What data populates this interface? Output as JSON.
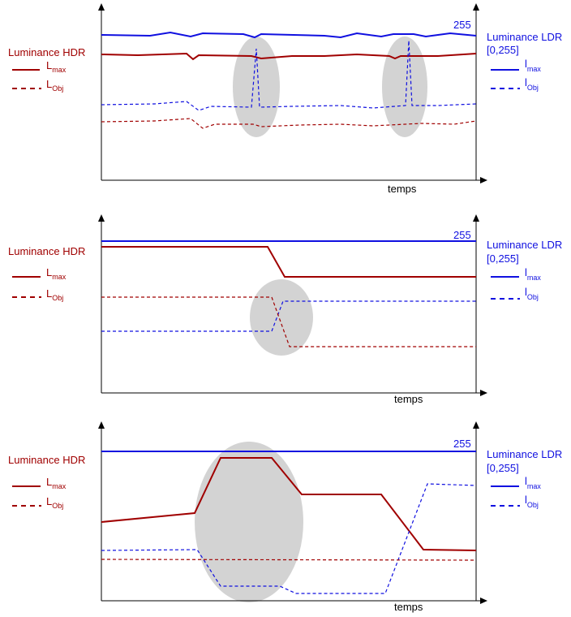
{
  "colors": {
    "hdr": "#a00000",
    "ldr": "#1010e0",
    "axis": "#000000",
    "highlight": "#d3d3d3"
  },
  "labels": {
    "hdr_title": "Luminance HDR",
    "ldr_title_1": "Luminance LDR",
    "ldr_title_2": "[0,255]",
    "value_255": "255",
    "time_axis": "temps",
    "L": "L",
    "l": "l",
    "sub_max": "max",
    "sub_obj": "Obj"
  },
  "panels": [
    {
      "name": "flicker-panel"
    },
    {
      "name": "abrupt-change-panel"
    },
    {
      "name": "transition-panel"
    }
  ]
}
